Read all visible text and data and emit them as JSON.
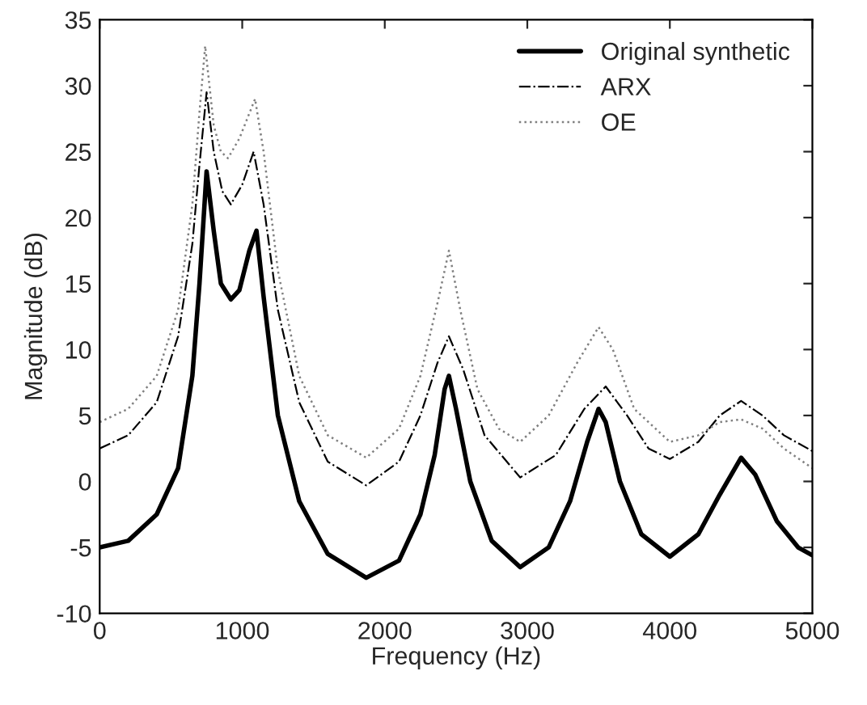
{
  "chart_data": {
    "type": "line",
    "xlabel": "Frequency (Hz)",
    "ylabel": "Magnitude (dB)",
    "xlim": [
      0,
      5000
    ],
    "xticks": [
      0,
      1000,
      2000,
      3000,
      4000,
      5000
    ],
    "ylim": [
      -10,
      35
    ],
    "yticks": [
      -10,
      -5,
      0,
      5,
      10,
      15,
      20,
      25,
      30,
      35
    ],
    "grid": false,
    "legend": "top right",
    "series": [
      {
        "name": "Original synthetic",
        "color": "#000000",
        "line_style": "solid",
        "x": [
          0,
          200,
          400,
          550,
          650,
          700,
          750,
          800,
          850,
          920,
          980,
          1050,
          1100,
          1150,
          1250,
          1400,
          1600,
          1870,
          2100,
          2250,
          2350,
          2420,
          2450,
          2500,
          2600,
          2750,
          2950,
          3150,
          3300,
          3420,
          3500,
          3550,
          3650,
          3800,
          4000,
          4200,
          4350,
          4500,
          4600,
          4750,
          4900,
          5000
        ],
        "values": [
          -5,
          -4.5,
          -2.5,
          1,
          8,
          15,
          23.5,
          19,
          15,
          13.8,
          14.5,
          17.5,
          19,
          14,
          5,
          -1.5,
          -5.5,
          -7.3,
          -6,
          -2.5,
          2,
          7,
          8,
          5.5,
          0,
          -4.5,
          -6.5,
          -5,
          -1.5,
          3,
          5.5,
          4.5,
          0,
          -4,
          -5.7,
          -4,
          -1,
          1.8,
          0.5,
          -3,
          -5,
          -5.6
        ]
      },
      {
        "name": "ARX",
        "color": "#000000",
        "line_style": "dashdot",
        "x": [
          0,
          200,
          400,
          550,
          650,
          700,
          750,
          800,
          860,
          920,
          1000,
          1080,
          1150,
          1250,
          1400,
          1600,
          1870,
          2100,
          2250,
          2370,
          2450,
          2550,
          2700,
          2950,
          3200,
          3400,
          3550,
          3700,
          3850,
          4000,
          4200,
          4350,
          4500,
          4650,
          4800,
          5000
        ],
        "values": [
          2.5,
          3.5,
          6,
          11,
          18,
          24,
          29.5,
          25,
          22,
          21,
          22.5,
          25,
          21,
          13,
          6,
          1.5,
          -0.3,
          1.5,
          5,
          9,
          11,
          8.5,
          3.5,
          0.3,
          2,
          5.5,
          7.2,
          5,
          2.5,
          1.7,
          3,
          5,
          6.1,
          5,
          3.5,
          2.3
        ]
      },
      {
        "name": "OE",
        "color": "#808080",
        "line_style": "dotted",
        "x": [
          0,
          200,
          400,
          550,
          650,
          700,
          740,
          800,
          850,
          900,
          980,
          1090,
          1150,
          1250,
          1400,
          1600,
          1870,
          2100,
          2250,
          2380,
          2450,
          2530,
          2650,
          2800,
          2950,
          3150,
          3350,
          3500,
          3600,
          3750,
          4000,
          4200,
          4350,
          4500,
          4650,
          4800,
          5000
        ],
        "values": [
          4.5,
          5.5,
          8,
          13,
          21,
          28,
          33,
          27,
          25,
          24.5,
          26,
          29,
          25,
          16,
          8,
          3.5,
          1.8,
          4,
          8,
          14,
          17.5,
          13,
          7,
          4,
          3,
          5,
          9,
          11.7,
          10,
          5.5,
          3,
          3.5,
          4.5,
          4.7,
          4,
          2.5,
          1
        ]
      }
    ]
  }
}
